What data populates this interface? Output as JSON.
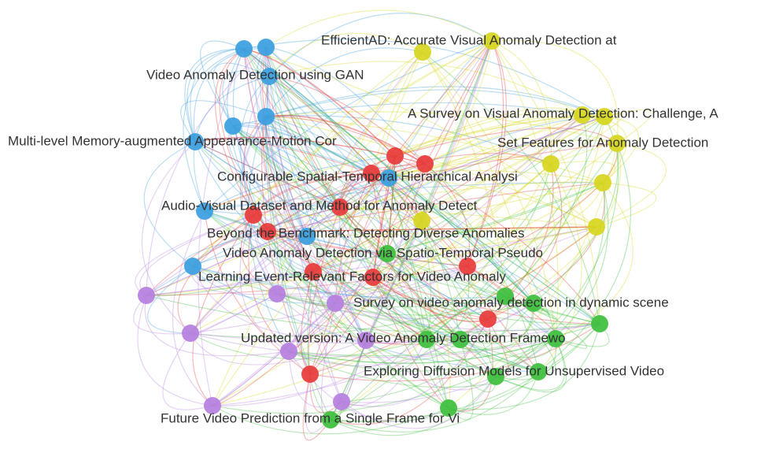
{
  "nodes": [
    {
      "label": "EfficientAD: Accurate Visual Anomaly Detection at"
    },
    {
      "label": "Video Anomaly Detection using GAN"
    },
    {
      "label": "A Survey on Visual Anomaly Detection: Challenge, A"
    },
    {
      "label": "Multi-level Memory-augmented Appearance-Motion Cor"
    },
    {
      "label": "Set Features for Anomaly Detection"
    },
    {
      "label": "Configurable Spatial-Temporal Hierarchical Analysi"
    },
    {
      "label": "Audio-Visual Dataset and Method for Anomaly Detect"
    },
    {
      "label": "Beyond the Benchmark: Detecting Diverse Anomalies"
    },
    {
      "label": "Video Anomaly Detection via Spatio-Temporal Pseudo"
    },
    {
      "label": "Learning Event-Relevant Factors for Video Anomaly"
    },
    {
      "label": "Survey on video anomaly detection in dynamic scene"
    },
    {
      "label": "Updated version: A Video Anomaly Detection Framewo"
    },
    {
      "label": "Exploring Diffusion Models for Unsupervised Video"
    },
    {
      "label": "Future Video Prediction from a Single Frame for Vi"
    }
  ]
}
